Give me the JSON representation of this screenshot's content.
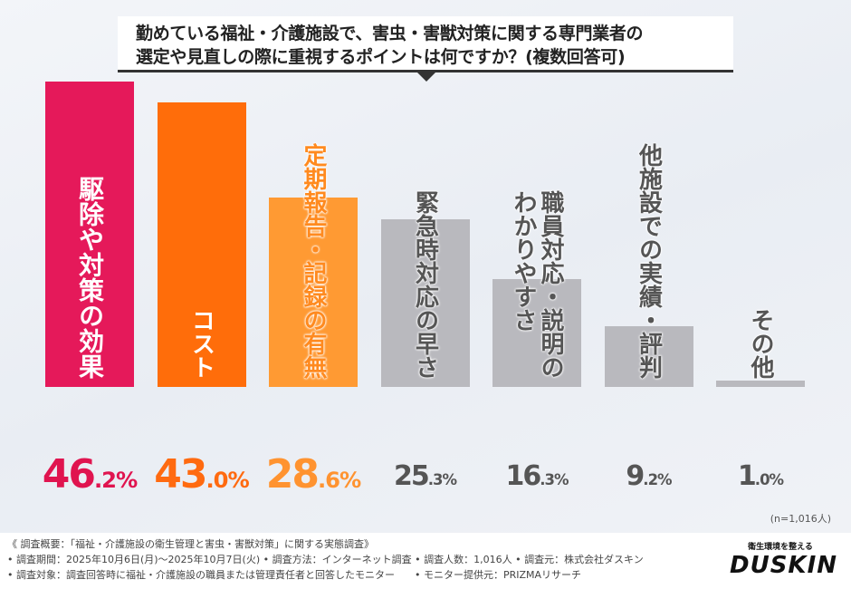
{
  "title": {
    "line1": "勤めている福祉・介護施設で、害虫・害獣対策に関する専門業者の",
    "line2": "選定や見直しの際に重視するポイントは何ですか？(複数回答可)"
  },
  "chart_data": {
    "type": "bar",
    "title": "勤めている福祉・介護施設で、害虫・害獣対策に関する専門業者の選定や見直しの際に重視するポイントは何ですか？(複数回答可)",
    "categories": [
      "駆除や対策の効果",
      "コスト",
      "定期報告・記録の有無",
      "緊急時対応の早さ",
      "職員対応・説明の\nわかりやすさ",
      "他施設での実績・評判",
      "その他"
    ],
    "values": [
      46.2,
      43.0,
      28.6,
      25.3,
      16.3,
      9.2,
      1.0
    ],
    "value_labels": [
      {
        "num": "46",
        "dec": ".2%"
      },
      {
        "num": "43",
        "dec": ".0%"
      },
      {
        "num": "28",
        "dec": ".6%"
      },
      {
        "num": "25",
        "dec": ".3%"
      },
      {
        "num": "16",
        "dec": ".3%"
      },
      {
        "num": "9",
        "dec": ".2%"
      },
      {
        "num": "1",
        "dec": ".0%"
      }
    ],
    "colors": [
      "#e5195a",
      "#ff6d0a",
      "#ff9a33",
      "#b9b9be",
      "#b9b9be",
      "#b9b9be",
      "#b9b9be"
    ],
    "label_colors": [
      "#ffffff",
      "#ffffff",
      "#ff8a1f",
      "#555555",
      "#555555",
      "#555555",
      "#555555"
    ],
    "value_colors": [
      "#e0144f",
      "#ff6a10",
      "#ff9330",
      "#555555",
      "#555555",
      "#555555",
      "#555555"
    ],
    "unit": "%",
    "ylim": [
      0,
      50
    ],
    "grid": false,
    "note": "(n=1,016人)"
  },
  "footer": {
    "line1": "《 調査概要：「福祉・介護施設の衛生管理と害虫・害獣対策」に関する実態調査》",
    "line2": "• 調査期間：2025年10月6日(月)～2025年10月7日(火) • 調査方法：インターネット調査 • 調査人数：1,016人 • 調査元：株式会社ダスキン",
    "line3": "• 調査対象：調査回答時に福祉・介護施設の職員または管理責任者と回答したモニター　　• モニター提供元：PRIZMAリサーチ"
  },
  "logo": {
    "tagline": "衛生環境を整える",
    "brand": "DUSKIN"
  }
}
